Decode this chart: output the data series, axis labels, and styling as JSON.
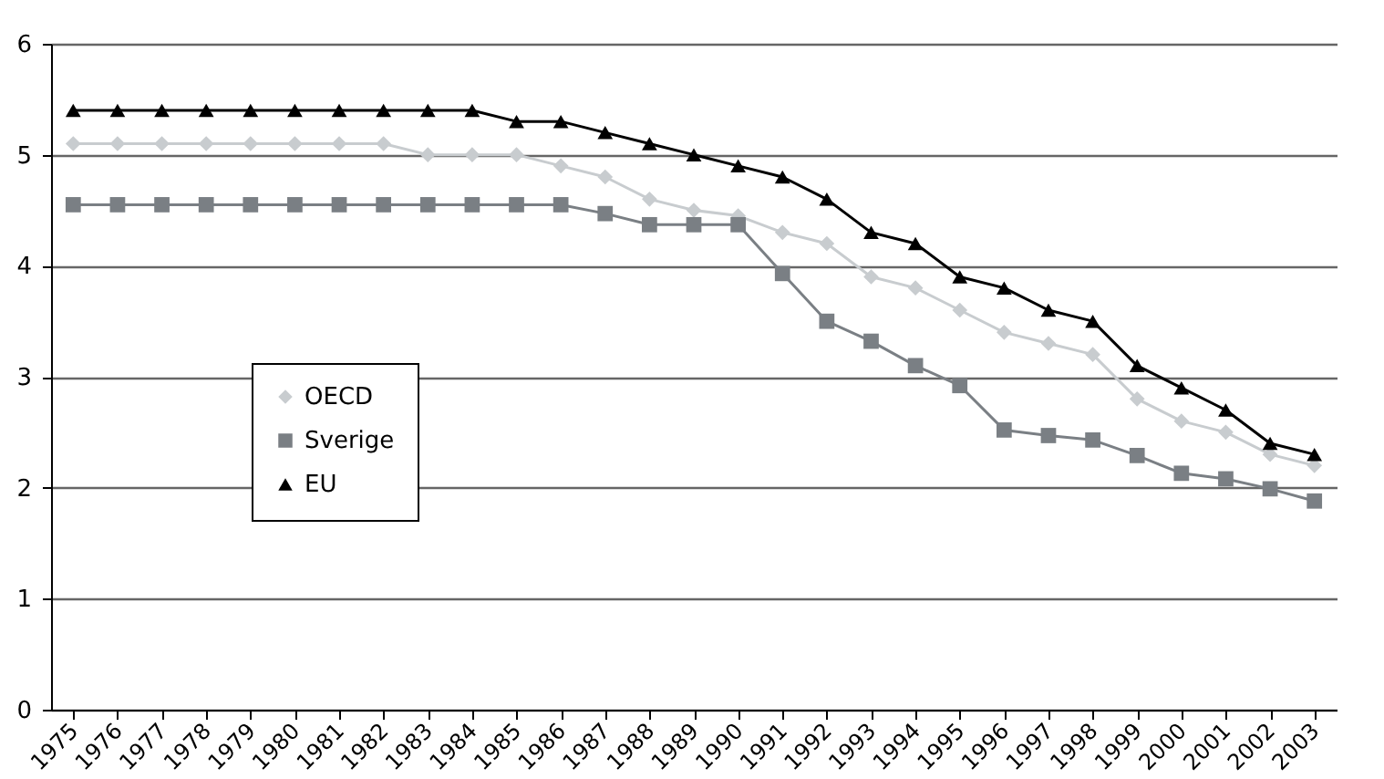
{
  "chart_data": {
    "type": "line",
    "categories": [
      "1975",
      "1976",
      "1977",
      "1978",
      "1979",
      "1980",
      "1981",
      "1982",
      "1983",
      "1984",
      "1985",
      "1986",
      "1987",
      "1988",
      "1989",
      "1990",
      "1991",
      "1992",
      "1993",
      "1994",
      "1995",
      "1996",
      "1997",
      "1998",
      "1999",
      "2000",
      "2001",
      "2002",
      "2003"
    ],
    "series": [
      {
        "name": "OECD",
        "color": "#c8cccf",
        "marker": "diamond",
        "values": [
          5.1,
          5.1,
          5.1,
          5.1,
          5.1,
          5.1,
          5.1,
          5.1,
          5.0,
          5.0,
          5.0,
          4.9,
          4.8,
          4.6,
          4.5,
          4.45,
          4.3,
          4.2,
          3.9,
          3.8,
          3.6,
          3.4,
          3.3,
          3.2,
          2.8,
          2.6,
          2.5,
          2.3,
          2.2
        ]
      },
      {
        "name": "Sverige",
        "color": "#7a7f84",
        "marker": "square",
        "values": [
          4.55,
          4.55,
          4.55,
          4.55,
          4.55,
          4.55,
          4.55,
          4.55,
          4.55,
          4.55,
          4.55,
          4.55,
          4.47,
          4.37,
          4.37,
          4.37,
          3.93,
          3.5,
          3.32,
          3.1,
          2.92,
          2.52,
          2.47,
          2.43,
          2.29,
          2.13,
          2.08,
          1.99,
          1.88
        ]
      },
      {
        "name": "EU",
        "color": "#000000",
        "marker": "triangle",
        "values": [
          5.4,
          5.4,
          5.4,
          5.4,
          5.4,
          5.4,
          5.4,
          5.4,
          5.4,
          5.4,
          5.3,
          5.3,
          5.2,
          5.1,
          5.0,
          4.9,
          4.8,
          4.6,
          4.3,
          4.2,
          3.9,
          3.8,
          3.6,
          3.5,
          3.1,
          2.9,
          2.7,
          2.4,
          2.3
        ]
      }
    ],
    "ylim": [
      0,
      6
    ],
    "yticks": [
      0,
      1,
      2,
      3,
      4,
      5,
      6
    ],
    "grid": "y",
    "legend": "left"
  }
}
